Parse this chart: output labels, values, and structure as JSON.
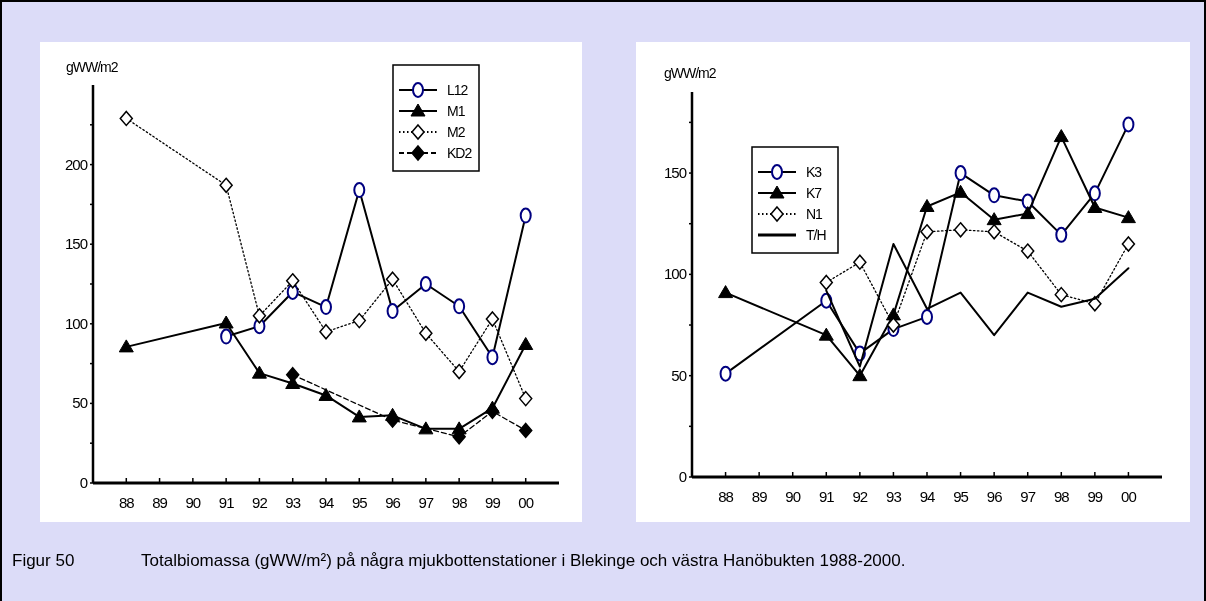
{
  "chart_data": [
    {
      "type": "line",
      "ylabel": "gWW/m2",
      "categories": [
        "88",
        "89",
        "90",
        "91",
        "92",
        "93",
        "94",
        "95",
        "96",
        "97",
        "98",
        "99",
        "00"
      ],
      "ylim": [
        0,
        250
      ],
      "yticks": [
        0,
        {
          "value": 25,
          "label": null
        },
        50,
        {
          "value": 75,
          "label": null
        },
        100,
        {
          "value": 125,
          "label": null
        },
        150,
        {
          "value": 175,
          "label": null
        },
        200,
        {
          "value": 225,
          "label": null
        }
      ],
      "legend": "top right",
      "grid": false,
      "series": [
        {
          "name": "L12",
          "color": "#000080",
          "marker": "circle",
          "line_style": "solid",
          "values": [
            null,
            null,
            null,
            92,
            98.5,
            120,
            110.5,
            184,
            108,
            125,
            111,
            79,
            168
          ]
        },
        {
          "name": "M1",
          "color": "#000000",
          "marker": "triangle",
          "line_style": "solid",
          "values": [
            85.5,
            null,
            null,
            100.5,
            69,
            62.5,
            55,
            41.5,
            42.5,
            34,
            34,
            47,
            87
          ]
        },
        {
          "name": "M2",
          "color": "#ffffff",
          "marker": "diamond",
          "line_style": "dotted",
          "values": [
            229,
            null,
            null,
            187,
            105,
            127,
            95,
            102,
            128,
            94,
            70,
            103,
            53
          ]
        },
        {
          "name": "KD2",
          "color": "#000000",
          "marker": "diamond",
          "line_style": "dashed",
          "values": [
            null,
            null,
            null,
            null,
            null,
            68,
            null,
            null,
            39.5,
            null,
            29,
            45,
            33
          ]
        }
      ],
      "annotations": [
        "Figur 50",
        "Totalbiomassa (gWW/m²) på några mjukbottenstationer i Blekinge och västra Hanöbukten 1988-2000."
      ]
    },
    {
      "type": "line",
      "ylabel": "gWW/m2",
      "categories": [
        "88",
        "89",
        "90",
        "91",
        "92",
        "93",
        "94",
        "95",
        "96",
        "97",
        "98",
        "99",
        "00"
      ],
      "ylim": [
        0,
        190
      ],
      "yticks": [
        0,
        {
          "value": 25,
          "label": null
        },
        50,
        {
          "value": 75,
          "label": null
        },
        100,
        {
          "value": 125,
          "label": null
        },
        150,
        {
          "value": 175,
          "label": null
        }
      ],
      "legend": "top left",
      "grid": false,
      "series": [
        {
          "name": "K3",
          "color": "#000080",
          "marker": "circle",
          "line_style": "solid",
          "values": [
            51,
            null,
            null,
            87,
            61,
            73,
            79,
            150,
            139,
            136,
            119.5,
            140,
            174
          ]
        },
        {
          "name": "K7",
          "color": "#000000",
          "marker": "triangle",
          "line_style": "solid",
          "values": [
            91,
            null,
            null,
            70,
            50,
            80,
            133.5,
            140.5,
            127,
            130,
            168,
            133,
            128
          ]
        },
        {
          "name": "N1",
          "color": "#ffffff",
          "marker": "diamond",
          "line_style": "dotted",
          "values": [
            null,
            null,
            null,
            96,
            106,
            75,
            121,
            122,
            121,
            111.5,
            90,
            85.5,
            115
          ]
        },
        {
          "name": "T/H",
          "color": "#000000",
          "marker": "none",
          "line_style": "solid",
          "values": [
            null,
            null,
            null,
            92,
            54.5,
            115,
            83,
            91,
            70,
            91,
            84,
            88,
            103
          ]
        }
      ]
    }
  ]
}
